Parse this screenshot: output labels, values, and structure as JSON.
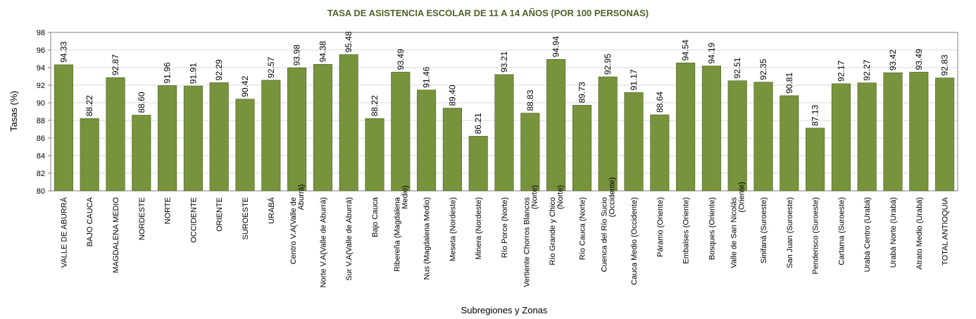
{
  "chart_data": {
    "type": "bar",
    "title": "TASA DE ASISTENCIA ESCOLAR DE 11 A 14 AÑOS (POR 100 PERSONAS)",
    "xlabel": "Subregiones y Zonas",
    "ylabel": "Tasas (%)",
    "ylim": [
      80,
      98
    ],
    "yticks": [
      80,
      82,
      84,
      86,
      88,
      90,
      92,
      94,
      96,
      98
    ],
    "grid": true,
    "categories": [
      "VALLE DE ABURRÁ",
      "BAJO CAUCA",
      "MAGDALENA MEDIO",
      "NORDESTE",
      "NORTE",
      "OCCIDENTE",
      "ORIENTE",
      "SUROESTE",
      "URABÁ",
      "Centro V.A(Valle de Aburrá)",
      "Norte V.A(Valle de Aburrá)",
      "Sur V.A(Valle de Aburrá)",
      "Bajo Cauca",
      "Ribereña (Magdalena Medio)",
      "Nus (Magdalena Medio)",
      "Meseta (Nordeste)",
      "Minera (Nordeste)",
      "Río Porce (Norte)",
      "Vertiente Chorros Blancos (Norte)",
      "Río Grande y Chico (Norte)",
      "Río Cauca (Norte)",
      "Cuenca del Río Sucio (Occidente)",
      "Cauca Medio (Occidente)",
      "Páramo (Oriente)",
      "Embalses (Oriente)",
      "Bosques (Oriente)",
      "Valle de San Nicolás (Oriente)",
      "Sinifaná (Suroeste)",
      "San Juan (Suroeste)",
      "Penderisco (Suroeste)",
      "Cartama (Suroeste)",
      "Urabá Centro (Urabá)",
      "Urabá Norte (Urabá)",
      "Atrato Medio (Urabá)",
      "TOTAL ANTIOQUIA"
    ],
    "category_label_lines": [
      [
        "VALLE DE ABURRÁ"
      ],
      [
        "BAJO CAUCA"
      ],
      [
        "MAGDALENA MEDIO"
      ],
      [
        "NORDESTE"
      ],
      [
        "NORTE"
      ],
      [
        "OCCIDENTE"
      ],
      [
        "ORIENTE"
      ],
      [
        "SUROESTE"
      ],
      [
        "URABÁ"
      ],
      [
        "Centro V.A(Valle de",
        "Aburrá)"
      ],
      [
        "Norte V.A(Valle de Aburrá)"
      ],
      [
        "Sur V.A(Valle de Aburrá)"
      ],
      [
        "Bajo Cauca"
      ],
      [
        "Ribereña (Magdalena",
        "Medio)"
      ],
      [
        "Nus (Magdalena Medio)"
      ],
      [
        "Meseta (Nordeste)"
      ],
      [
        "Minera (Nordeste)"
      ],
      [
        "Río Porce (Norte)"
      ],
      [
        "Vertiente Chorros Blancos",
        "(Norte)"
      ],
      [
        "Río Grande y Chico",
        "(Norte)"
      ],
      [
        "Río Cauca (Norte)"
      ],
      [
        "Cuenca del Río Sucio",
        "(Occidente)"
      ],
      [
        "Cauca Medio (Occidente)"
      ],
      [
        "Páramo (Oriente)"
      ],
      [
        "Embalses (Oriente)"
      ],
      [
        "Bosques (Oriente)"
      ],
      [
        "Valle de San Nicolás",
        "(Oriente)"
      ],
      [
        "Sinifaná (Suroeste)"
      ],
      [
        "San Juan (Suroeste)"
      ],
      [
        "Penderisco (Suroeste)"
      ],
      [
        "Cartama (Suroeste)"
      ],
      [
        "Urabá Centro (Urabá)"
      ],
      [
        "Urabá Norte (Urabá)"
      ],
      [
        "Atrato Medio (Urabá)"
      ],
      [
        "TOTAL ANTIOQUIA"
      ]
    ],
    "values": [
      94.33,
      88.22,
      92.87,
      88.6,
      91.96,
      91.91,
      92.29,
      90.42,
      92.57,
      93.98,
      94.38,
      95.48,
      88.22,
      93.49,
      91.46,
      89.4,
      86.21,
      93.21,
      88.83,
      94.94,
      89.73,
      92.95,
      91.17,
      88.64,
      94.54,
      94.19,
      92.51,
      92.35,
      90.81,
      87.13,
      92.17,
      92.27,
      93.42,
      93.49,
      92.83
    ],
    "data_labels": [
      "94.33",
      "88.22",
      "92.87",
      "88.60",
      "91.96",
      "91.91",
      "92.29",
      "90.42",
      "92.57",
      "93.98",
      "94.38",
      "95.48",
      "88.22",
      "93.49",
      "91.46",
      "89.40",
      "86.21",
      "93.21",
      "88.83",
      "94.94",
      "89.73",
      "92.95",
      "91.17",
      "88.64",
      "94.54",
      "94.19",
      "92.51",
      "92.35",
      "90.81",
      "87.13",
      "92.17",
      "92.27",
      "93.42",
      "93.49",
      "92.83"
    ],
    "colors": {
      "bar": "#77933c",
      "bar_edge": "#4f6228",
      "title": "#4f6228",
      "grid": "#d9d9d9",
      "axis": "#808080"
    }
  }
}
